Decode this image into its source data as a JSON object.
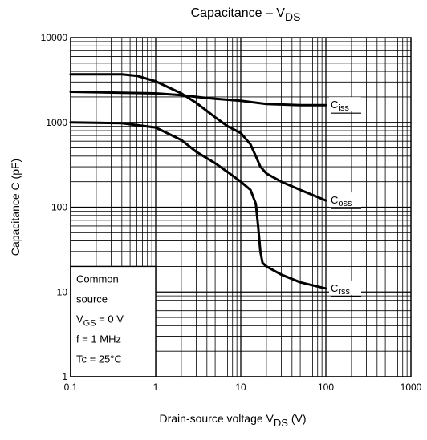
{
  "chart_data": {
    "type": "line",
    "title": {
      "main": "Capacitance – V",
      "sub": "DS"
    },
    "xlabel": {
      "main": "Drain-source voltage   V",
      "sub": "DS",
      "unit": "(V)"
    },
    "ylabel": "Capacitance   C   (pF)",
    "x_scale": "log",
    "y_scale": "log",
    "xlim": [
      0.1,
      1000
    ],
    "ylim": [
      1,
      10000
    ],
    "grid": true,
    "x_ticks": [
      {
        "value": 0.1,
        "label": "0.1"
      },
      {
        "value": 1,
        "label": "1"
      },
      {
        "value": 10,
        "label": "10"
      },
      {
        "value": 100,
        "label": "100"
      },
      {
        "value": 1000,
        "label": "1000"
      }
    ],
    "y_ticks": [
      {
        "value": 1,
        "label": "1"
      },
      {
        "value": 10,
        "label": "10"
      },
      {
        "value": 100,
        "label": "100"
      },
      {
        "value": 1000,
        "label": "1000"
      },
      {
        "value": 10000,
        "label": "10000"
      }
    ],
    "series": [
      {
        "name": "Ciss",
        "label_main": "C",
        "label_sub": "iss",
        "x": [
          0.1,
          0.3,
          1,
          2,
          3,
          5,
          10,
          20,
          50,
          100
        ],
        "y": [
          2300,
          2250,
          2200,
          2100,
          2000,
          1900,
          1800,
          1650,
          1600,
          1600
        ]
      },
      {
        "name": "Coss",
        "label_main": "C",
        "label_sub": "oss",
        "x": [
          0.1,
          0.4,
          0.6,
          1,
          2,
          3,
          5,
          7,
          10,
          13,
          15,
          17,
          20,
          30,
          50,
          100
        ],
        "y": [
          3700,
          3700,
          3550,
          3050,
          2200,
          1700,
          1150,
          900,
          750,
          550,
          400,
          300,
          250,
          200,
          160,
          120
        ]
      },
      {
        "name": "Crss",
        "label_main": "C",
        "label_sub": "rss",
        "x": [
          0.1,
          0.4,
          1,
          2,
          3,
          5,
          7,
          10,
          13,
          15,
          16,
          17,
          18,
          20,
          30,
          50,
          100
        ],
        "y": [
          1000,
          980,
          870,
          620,
          450,
          330,
          260,
          200,
          160,
          110,
          60,
          30,
          22,
          20,
          16,
          13,
          11
        ]
      }
    ],
    "conditions": [
      {
        "text": "Common"
      },
      {
        "text": "source"
      },
      {
        "main": "V",
        "sub": "GS",
        "rest": " = 0 V"
      },
      {
        "text": "f = 1 MHz"
      },
      {
        "text": "Tc = 25°C"
      }
    ]
  }
}
